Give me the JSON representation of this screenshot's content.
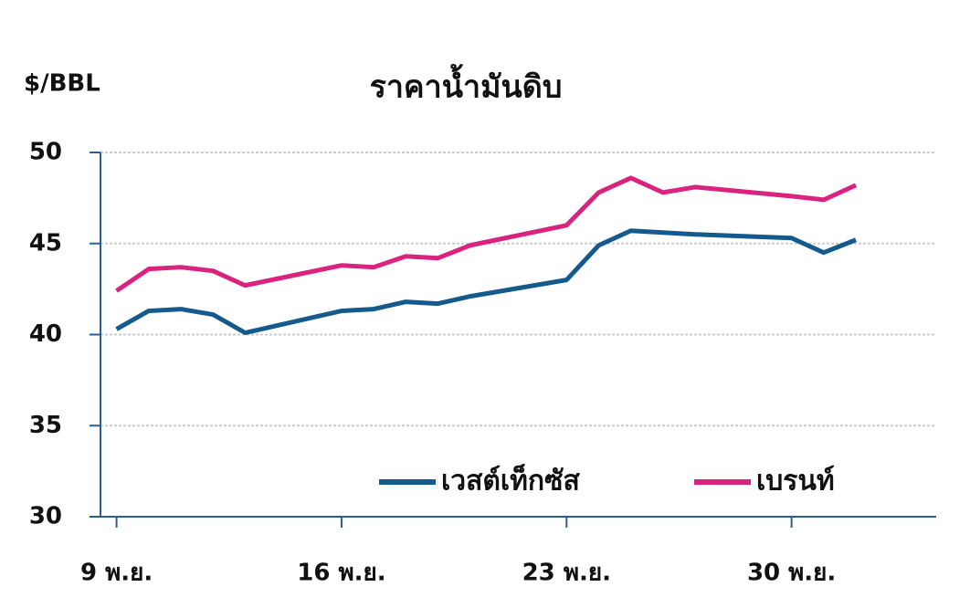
{
  "chart_data": {
    "type": "line",
    "title": "ราคาน้ำมันดิบ",
    "y_label": "$/BBL",
    "ylim": [
      30,
      50
    ],
    "yticks": [
      30,
      35,
      40,
      45,
      50
    ],
    "xlim": [
      8.5,
      34.5
    ],
    "xticks": [
      {
        "value": 9,
        "label": "9 พ.ย."
      },
      {
        "value": 16,
        "label": "16 พ.ย."
      },
      {
        "value": 23,
        "label": "23 พ.ย."
      },
      {
        "value": 30,
        "label": "30 พ.ย."
      }
    ],
    "grid": true,
    "legend": "bottom-right",
    "x": [
      9,
      10,
      11,
      12,
      13,
      16,
      17,
      18,
      19,
      20,
      23,
      24,
      25,
      26,
      27,
      30,
      31,
      32
    ],
    "series": [
      {
        "name": "เวสต์เท็กซัส",
        "color": "#145a8c",
        "values": [
          40.3,
          41.3,
          41.4,
          41.1,
          40.1,
          41.3,
          41.4,
          41.8,
          41.7,
          42.1,
          43.0,
          44.9,
          45.7,
          45.6,
          45.5,
          45.3,
          44.5,
          45.2
        ]
      },
      {
        "name": "เบรนท์",
        "color": "#d9237f",
        "values": [
          42.4,
          43.6,
          43.7,
          43.5,
          42.7,
          43.8,
          43.7,
          44.3,
          44.2,
          44.9,
          46.0,
          47.8,
          48.6,
          47.8,
          48.1,
          47.6,
          47.4,
          48.2
        ]
      }
    ]
  }
}
